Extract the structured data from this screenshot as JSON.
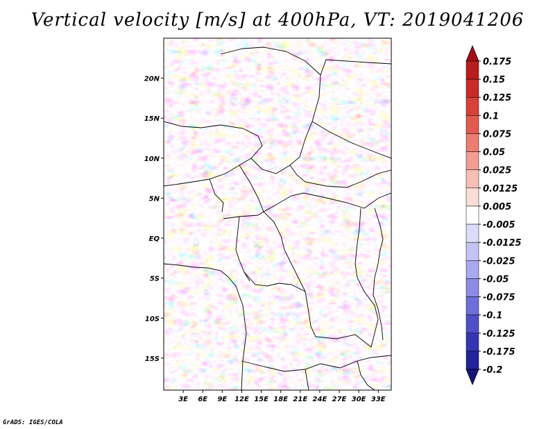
{
  "title": "Vertical velocity [m/s] at 400hPa, VT: 2019041206",
  "credit": "GrADS: IGES/COLA",
  "map": {
    "lon_range": [
      0,
      35
    ],
    "lat_range": [
      -19,
      25
    ],
    "lat_ticks": [
      {
        "value": 20,
        "label": "20N"
      },
      {
        "value": 15,
        "label": "15N"
      },
      {
        "value": 10,
        "label": "10N"
      },
      {
        "value": 5,
        "label": "5N"
      },
      {
        "value": 0,
        "label": "EQ"
      },
      {
        "value": -5,
        "label": "5S"
      },
      {
        "value": -10,
        "label": "10S"
      },
      {
        "value": -15,
        "label": "15S"
      }
    ],
    "lon_ticks": [
      {
        "value": 3,
        "label": "3E"
      },
      {
        "value": 6,
        "label": "6E"
      },
      {
        "value": 9,
        "label": "9E"
      },
      {
        "value": 12,
        "label": "12E"
      },
      {
        "value": 15,
        "label": "15E"
      },
      {
        "value": 18,
        "label": "18E"
      },
      {
        "value": 21,
        "label": "21E"
      },
      {
        "value": 24,
        "label": "24E"
      },
      {
        "value": 27,
        "label": "27E"
      },
      {
        "value": 30,
        "label": "30E"
      },
      {
        "value": 33,
        "label": "33E"
      }
    ]
  },
  "colorbar": {
    "labels": [
      "0.175",
      "0.15",
      "0.125",
      "0.1",
      "0.075",
      "0.05",
      "0.025",
      "0.0125",
      "0.005",
      "-0.005",
      "-0.0125",
      "-0.025",
      "-0.05",
      "-0.075",
      "-0.1",
      "-0.125",
      "-0.175",
      "-0.2"
    ],
    "colors": [
      "#a50f15",
      "#b91c1c",
      "#cb2a2a",
      "#d9403a",
      "#e35a4f",
      "#ec7d72",
      "#f29d92",
      "#f7bfb6",
      "#fbdcd6",
      "#ffffff",
      "#dcdcfa",
      "#c3c3f4",
      "#a9a9ee",
      "#8c8ce4",
      "#6e6ed8",
      "#4f4fc7",
      "#3535b4",
      "#22229c",
      "#15157a"
    ]
  }
}
